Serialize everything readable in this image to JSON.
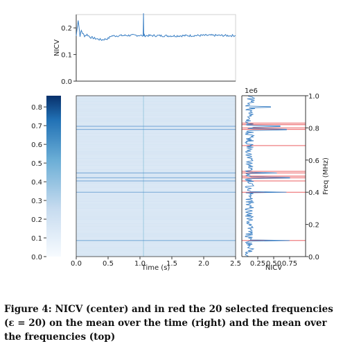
{
  "caption": "Figure 4: NICV (center) and in red the 20 selected frequencies (ε = 20) on the mean over the time (right) and the mean over the frequencies (top)",
  "colors": {
    "line": "#3a7fc4",
    "red": "#e8474a",
    "heat_bg": "#dbe8f5",
    "colorbar_top": "#08306b",
    "colorbar_bottom": "#f7fbff"
  },
  "chart_data": [
    {
      "panel": "top",
      "type": "line",
      "ylabel": "NICV",
      "xlim": [
        0,
        2.5
      ],
      "ylim": [
        0,
        0.25
      ],
      "yticks": [
        "0.0",
        "0.1",
        "0.2"
      ],
      "ytick_values": [
        0.0,
        0.1,
        0.2
      ],
      "x": [
        0.0,
        0.03,
        0.06,
        0.08,
        0.1,
        0.13,
        0.17,
        0.22,
        0.3,
        0.4,
        0.5,
        0.55,
        0.6,
        0.8,
        1.0,
        1.05,
        1.055,
        1.06,
        1.065,
        1.07,
        1.2,
        1.5,
        1.8,
        2.1,
        2.4,
        2.5
      ],
      "y": [
        0.17,
        0.23,
        0.17,
        0.19,
        0.18,
        0.17,
        0.175,
        0.165,
        0.16,
        0.155,
        0.16,
        0.17,
        0.17,
        0.172,
        0.172,
        0.17,
        0.255,
        0.172,
        0.17,
        0.171,
        0.171,
        0.17,
        0.171,
        0.172,
        0.171,
        0.171
      ]
    },
    {
      "panel": "center",
      "type": "heatmap",
      "xlabel": "Time (s)",
      "xlim": [
        0,
        2.5
      ],
      "xticks": [
        "0.0",
        "0.5",
        "1.0",
        "1.5",
        "2.0",
        "2.5"
      ],
      "xtick_values": [
        0.0,
        0.5,
        1.0,
        1.5,
        2.0,
        2.5
      ],
      "ylim": [
        0,
        1000000
      ],
      "horizontal_bands_mhz": [
        0.1,
        0.4,
        0.47,
        0.49,
        0.52,
        0.79,
        0.81
      ],
      "colorbar": {
        "ticks": [
          "0.0",
          "0.1",
          "0.2",
          "0.3",
          "0.4",
          "0.5",
          "0.6",
          "0.7",
          "0.8"
        ],
        "tick_values": [
          0.0,
          0.1,
          0.2,
          0.3,
          0.4,
          0.5,
          0.6,
          0.7,
          0.8
        ],
        "range": [
          0.0,
          0.86
        ]
      }
    },
    {
      "panel": "right",
      "type": "line",
      "xlabel": "NICV",
      "ylabel": "Freq (MHz)",
      "offset_text": "1e6",
      "xticks": [
        "0.25",
        "0.50",
        "0.75"
      ],
      "xtick_values": [
        0.25,
        0.5,
        0.75
      ],
      "xlim": [
        0,
        1.0
      ],
      "yticks": [
        "0.0",
        "0.2",
        "0.4",
        "0.6",
        "0.8",
        "1.0"
      ],
      "ytick_values": [
        0.0,
        0.2,
        0.4,
        0.6,
        0.8,
        1.0
      ],
      "ylim": [
        0,
        1.0
      ],
      "red_lines_mhz": [
        0.1,
        0.4,
        0.47,
        0.49,
        0.5,
        0.52,
        0.53,
        0.69,
        0.79,
        0.8,
        0.82,
        0.83
      ],
      "peaks": [
        {
          "freq": 0.1,
          "nicv": 0.75
        },
        {
          "freq": 0.4,
          "nicv": 0.7
        },
        {
          "freq": 0.49,
          "nicv": 0.75
        },
        {
          "freq": 0.52,
          "nicv": 0.55
        },
        {
          "freq": 0.79,
          "nicv": 0.7
        },
        {
          "freq": 0.81,
          "nicv": 0.6
        },
        {
          "freq": 0.93,
          "nicv": 0.45
        }
      ]
    }
  ]
}
